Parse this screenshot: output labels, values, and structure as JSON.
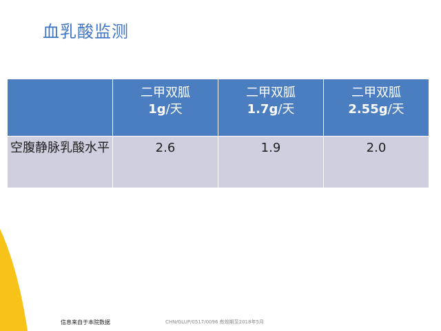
{
  "title": "血乳酸监测",
  "table": {
    "columns": [
      {
        "drug": "二甲双胍",
        "dose": "1g",
        "unit": "/天"
      },
      {
        "drug": "二甲双胍",
        "dose": "1.7g",
        "unit": "/天"
      },
      {
        "drug": "二甲双胍",
        "dose": "2.55g",
        "unit": "/天"
      }
    ],
    "row": {
      "label": "空腹静脉乳酸水平",
      "values": [
        "2.6",
        "1.9",
        "2.0"
      ]
    }
  },
  "footer": {
    "note": "信息来自于本院数据",
    "code": "CHN/GLUP/0517/0096   有效期至2018年5月"
  },
  "colors": {
    "title": "#3f73c4",
    "header_bg": "#4a7ec0",
    "body_bg": "#d0cfe0",
    "accent_yellow": "#f7c318"
  }
}
